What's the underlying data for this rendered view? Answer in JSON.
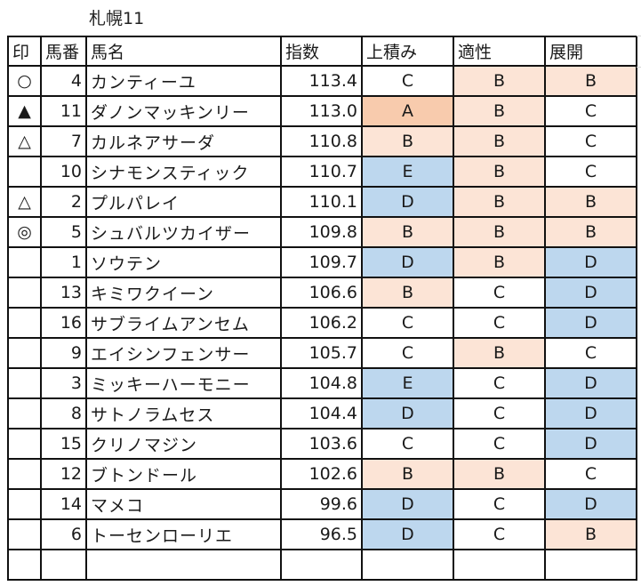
{
  "title": "札幌11",
  "header": {
    "mark": "印",
    "number": "馬番",
    "name": "馬名",
    "index": "指数",
    "agari": "上積み",
    "aptitude": "適性",
    "pace": "展開"
  },
  "colors": {
    "peach": "#fce4d6",
    "orange": "#f8cbad",
    "blue": "#bdd7ee",
    "border": "#111111"
  },
  "rows": [
    {
      "mark": "○",
      "number": "4",
      "name": "カンティーユ",
      "index": "113.4",
      "agari": "C",
      "aptitude": "B",
      "pace": "B"
    },
    {
      "mark": "▲",
      "number": "11",
      "name": "ダノンマッキンリー",
      "index": "113.0",
      "agari": "A",
      "aptitude": "B",
      "pace": "C"
    },
    {
      "mark": "△",
      "number": "7",
      "name": "カルネアサーダ",
      "index": "110.8",
      "agari": "B",
      "aptitude": "B",
      "pace": "C"
    },
    {
      "mark": "",
      "number": "10",
      "name": "シナモンスティック",
      "index": "110.7",
      "agari": "E",
      "aptitude": "B",
      "pace": "C"
    },
    {
      "mark": "△",
      "number": "2",
      "name": "プルパレイ",
      "index": "110.1",
      "agari": "D",
      "aptitude": "B",
      "pace": "B"
    },
    {
      "mark": "◎",
      "number": "5",
      "name": "シュバルツカイザー",
      "index": "109.8",
      "agari": "B",
      "aptitude": "B",
      "pace": "B"
    },
    {
      "mark": "",
      "number": "1",
      "name": "ソウテン",
      "index": "109.7",
      "agari": "D",
      "aptitude": "B",
      "pace": "D"
    },
    {
      "mark": "",
      "number": "13",
      "name": "キミワクイーン",
      "index": "106.6",
      "agari": "B",
      "aptitude": "C",
      "pace": "D"
    },
    {
      "mark": "",
      "number": "16",
      "name": "サブライムアンセム",
      "index": "106.2",
      "agari": "C",
      "aptitude": "C",
      "pace": "D"
    },
    {
      "mark": "",
      "number": "9",
      "name": "エイシンフェンサー",
      "index": "105.7",
      "agari": "C",
      "aptitude": "B",
      "pace": "C"
    },
    {
      "mark": "",
      "number": "3",
      "name": "ミッキーハーモニー",
      "index": "104.8",
      "agari": "E",
      "aptitude": "C",
      "pace": "D"
    },
    {
      "mark": "",
      "number": "8",
      "name": "サトノラムセス",
      "index": "104.4",
      "agari": "D",
      "aptitude": "C",
      "pace": "D"
    },
    {
      "mark": "",
      "number": "15",
      "name": "クリノマジン",
      "index": "103.6",
      "agari": "C",
      "aptitude": "C",
      "pace": "D"
    },
    {
      "mark": "",
      "number": "12",
      "name": "ブトンドール",
      "index": "102.6",
      "agari": "B",
      "aptitude": "B",
      "pace": "C"
    },
    {
      "mark": "",
      "number": "14",
      "name": "マメコ",
      "index": "99.6",
      "agari": "D",
      "aptitude": "C",
      "pace": "D"
    },
    {
      "mark": "",
      "number": "6",
      "name": "トーセンローリエ",
      "index": "96.5",
      "agari": "D",
      "aptitude": "C",
      "pace": "B"
    }
  ]
}
